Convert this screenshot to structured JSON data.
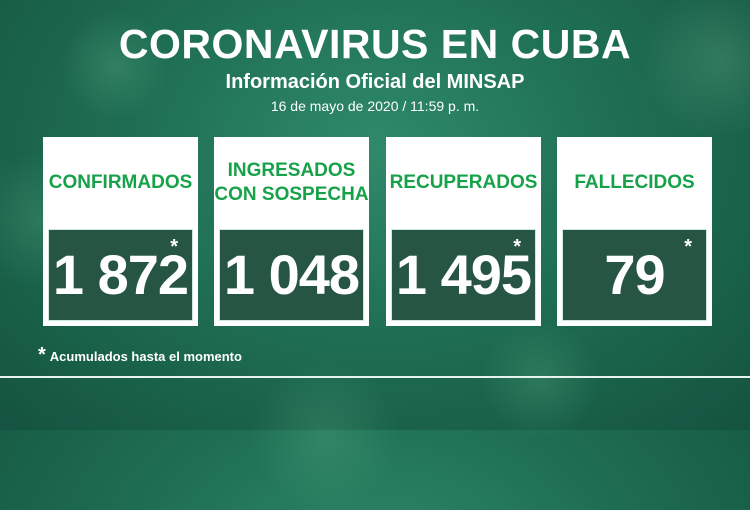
{
  "header": {
    "title": "CORONAVIRUS EN CUBA",
    "subtitle": "Información Oficial del MINSAP",
    "date": "16 de mayo de 2020 / 11:59 p. m."
  },
  "cards": [
    {
      "label": "CONFIRMADOS",
      "value": "1 872",
      "asterisk": "*"
    },
    {
      "label": "INGRESADOS\nCON SOSPECHA",
      "value": "1 048",
      "asterisk": ""
    },
    {
      "label": "RECUPERADOS",
      "value": "1 495",
      "asterisk": "*"
    },
    {
      "label": "FALLECIDOS",
      "value": "79",
      "asterisk": "*"
    }
  ],
  "footnote": {
    "asterisk": "*",
    "text": "Acumulados hasta el momento"
  },
  "colors": {
    "accent_green": "#17a24a",
    "background": "#1f6f54",
    "value_box": "#144634"
  }
}
